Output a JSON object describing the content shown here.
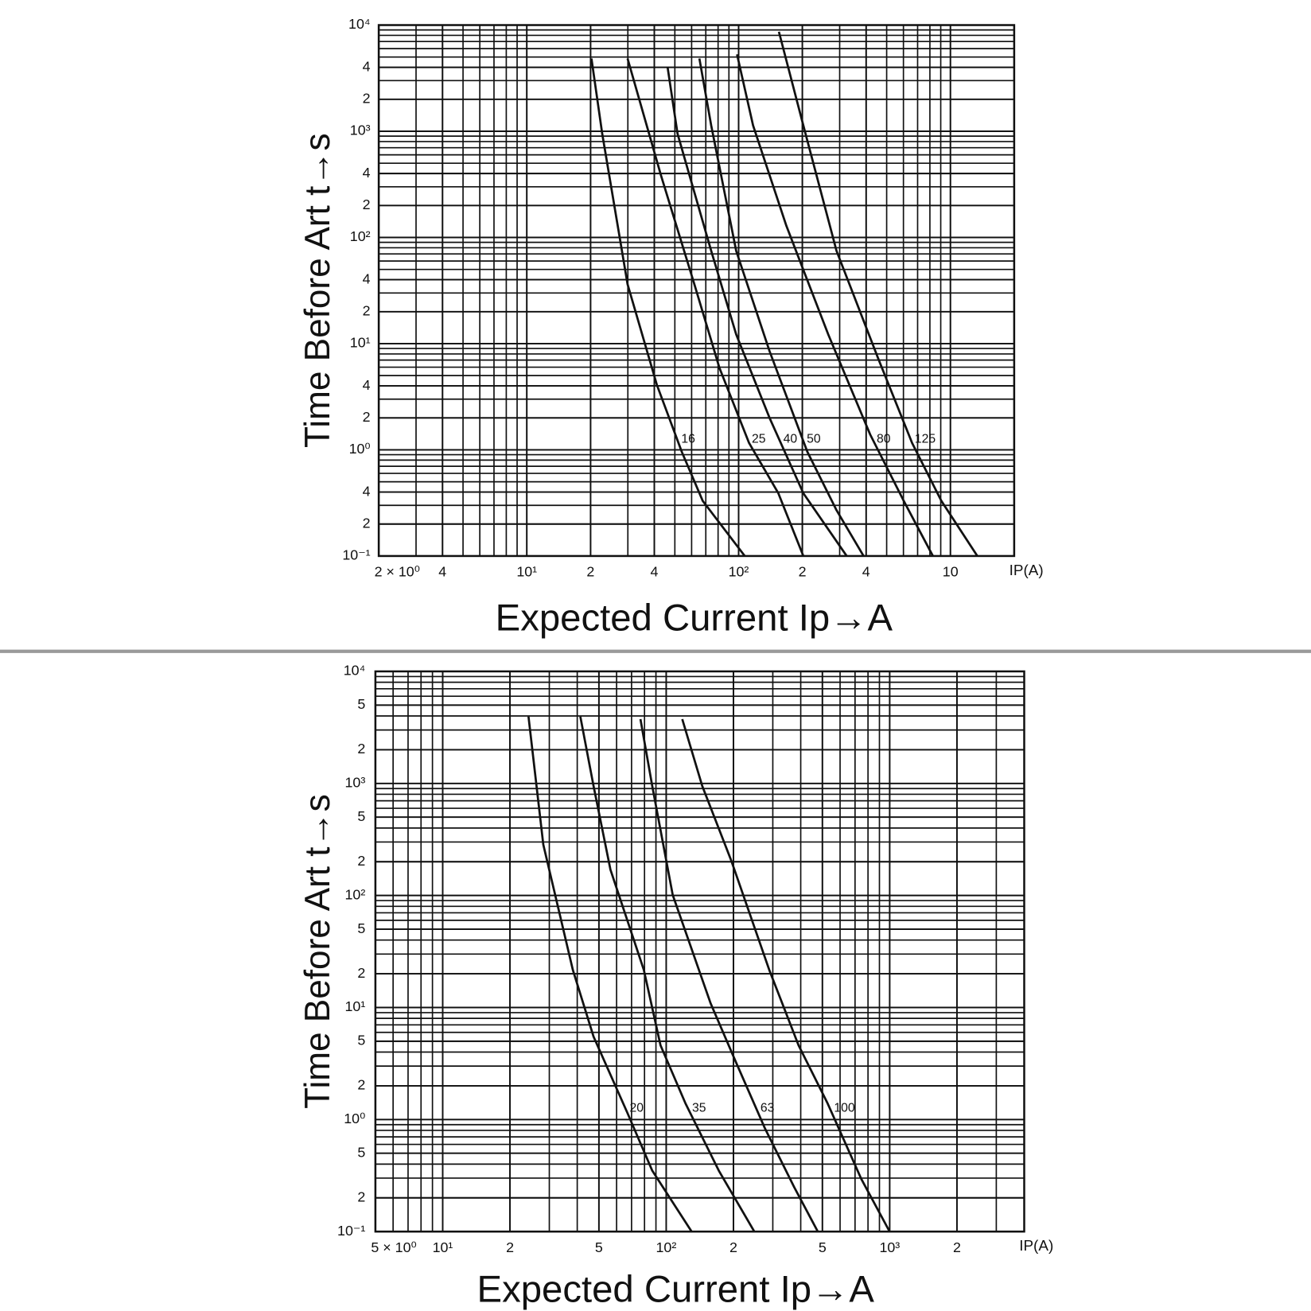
{
  "chart_data": [
    {
      "type": "line",
      "xscale": "log",
      "yscale": "log",
      "grid": "minor",
      "xlabel": "Expected Current Ip→A",
      "ylabel": "Time Before Art t→s",
      "x_unit": "IP(A)",
      "xlim": [
        2,
        2000
      ],
      "ylim": [
        0.1,
        10000
      ],
      "xticks": [
        {
          "value": 2,
          "label": "2 × 10⁰"
        },
        {
          "value": 4,
          "label": "4"
        },
        {
          "value": 10,
          "label": "10¹"
        },
        {
          "value": 20,
          "label": "2"
        },
        {
          "value": 40,
          "label": "4"
        },
        {
          "value": 100,
          "label": "10²"
        },
        {
          "value": 200,
          "label": "2"
        },
        {
          "value": 400,
          "label": "4"
        },
        {
          "value": 1000,
          "label": "10"
        }
      ],
      "yticks": [
        {
          "value": 10000,
          "label": "10⁴"
        },
        {
          "value": 4000,
          "label": "4"
        },
        {
          "value": 2000,
          "label": "2"
        },
        {
          "value": 1000,
          "label": "10³"
        },
        {
          "value": 400,
          "label": "4"
        },
        {
          "value": 200,
          "label": "2"
        },
        {
          "value": 100,
          "label": "10²"
        },
        {
          "value": 40,
          "label": "4"
        },
        {
          "value": 20,
          "label": "2"
        },
        {
          "value": 10,
          "label": "10¹"
        },
        4,
        2,
        {
          "value": 1,
          "label": "10⁰"
        },
        {
          "value": 0.4,
          "label": "4"
        },
        {
          "value": 0.2,
          "label": "2"
        },
        {
          "value": 0.1,
          "label": "10⁻¹"
        }
      ],
      "series": [
        {
          "name": "16",
          "color": "#111111",
          "x": [
            20.2,
            22.7,
            29.9,
            41.1,
            53.9,
            67.7,
            107
          ],
          "values": [
            4840,
            946,
            36.2,
            4.1,
            0.96,
            0.33,
            0.1
          ]
        },
        {
          "name": "25",
          "color": "#111111",
          "x": [
            29.9,
            43,
            61.8,
            81.2,
            112,
            154,
            202
          ],
          "values": [
            4840,
            383,
            36.2,
            5.9,
            1.16,
            0.39,
            0.1
          ]
        },
        {
          "name": "40",
          "color": "#111111",
          "x": [
            46.2,
            51.5,
            74.2,
            97.4,
            140,
            202,
            324
          ],
          "values": [
            4040,
            946,
            74.8,
            12.2,
            2.0,
            0.39,
            0.1
          ]
        },
        {
          "name": "50",
          "color": "#111111",
          "x": [
            65.3,
            74.2,
            97.4,
            140,
            211,
            290,
            389
          ],
          "values": [
            4840,
            1135,
            74.8,
            8.5,
            0.96,
            0.27,
            0.1
          ]
        },
        {
          "name": "80",
          "color": "#111111",
          "x": [
            98.3,
            117,
            168,
            265,
            418,
            602,
            827
          ],
          "values": [
            5300,
            1135,
            129,
            12.2,
            1.39,
            0.33,
            0.1
          ]
        },
        {
          "name": "125",
          "color": "#111111",
          "x": [
            155,
            202,
            290,
            458,
            659,
            906,
            1340
          ],
          "values": [
            8650,
            1135,
            74.8,
            7.1,
            1.16,
            0.33,
            0.1
          ]
        }
      ]
    },
    {
      "type": "line",
      "xscale": "log",
      "yscale": "log",
      "grid": "minor",
      "xlabel": "Expected Current Ip→A",
      "ylabel": "Time Before Art t→s",
      "x_unit": "IP(A)",
      "xlim": [
        5,
        4000
      ],
      "ylim": [
        0.1,
        10000
      ],
      "xticks": [
        {
          "value": 5,
          "label": "5 × 10⁰"
        },
        {
          "value": 10,
          "label": "10¹"
        },
        {
          "value": 20,
          "label": "2"
        },
        {
          "value": 50,
          "label": "5"
        },
        {
          "value": 100,
          "label": "10²"
        },
        {
          "value": 200,
          "label": "2"
        },
        {
          "value": 500,
          "label": "5"
        },
        {
          "value": 1000,
          "label": "10³"
        },
        {
          "value": 2000,
          "label": "2"
        }
      ],
      "yticks": [
        {
          "value": 10000,
          "label": "10⁴"
        },
        {
          "value": 5000,
          "label": "5"
        },
        {
          "value": 2000,
          "label": "2"
        },
        {
          "value": 1000,
          "label": "10³"
        },
        {
          "value": 500,
          "label": "5"
        },
        {
          "value": 200,
          "label": "2"
        },
        {
          "value": 100,
          "label": "10²"
        },
        {
          "value": 50,
          "label": "5"
        },
        {
          "value": 20,
          "label": "2"
        },
        {
          "value": 10,
          "label": "10¹"
        },
        5,
        2,
        {
          "value": 1,
          "label": "10⁰"
        },
        {
          "value": 0.5,
          "label": "5"
        },
        {
          "value": 0.2,
          "label": "2"
        },
        {
          "value": 0.1,
          "label": "10⁻¹"
        }
      ],
      "series": [
        {
          "name": "20",
          "color": "#111111",
          "x": [
            24.2,
            28.2,
            38.2,
            47.3,
            66.8,
            86.6,
            130
          ],
          "values": [
            3955,
            285,
            21.7,
            5.5,
            1.17,
            0.35,
            0.1
          ]
        },
        {
          "name": "35",
          "color": "#111111",
          "x": [
            41.3,
            47.3,
            56.3,
            79.4,
            94.3,
            122,
            172,
            248
          ],
          "values": [
            3955,
            950,
            170,
            21.7,
            4.6,
            1.39,
            0.35,
            0.1
          ]
        },
        {
          "name": "63",
          "color": "#111111",
          "x": [
            76.7,
            86.6,
            107,
            158,
            205,
            277,
            374,
            477
          ],
          "values": [
            3750,
            950,
            101,
            10.9,
            3.27,
            0.83,
            0.249,
            0.1
          ]
        },
        {
          "name": "100",
          "color": "#111111",
          "x": [
            118,
            145,
            196,
            289,
            391,
            528,
            746,
            999
          ],
          "values": [
            3750,
            950,
            202,
            21.7,
            4.6,
            1.39,
            0.295,
            0.1
          ]
        }
      ]
    }
  ]
}
